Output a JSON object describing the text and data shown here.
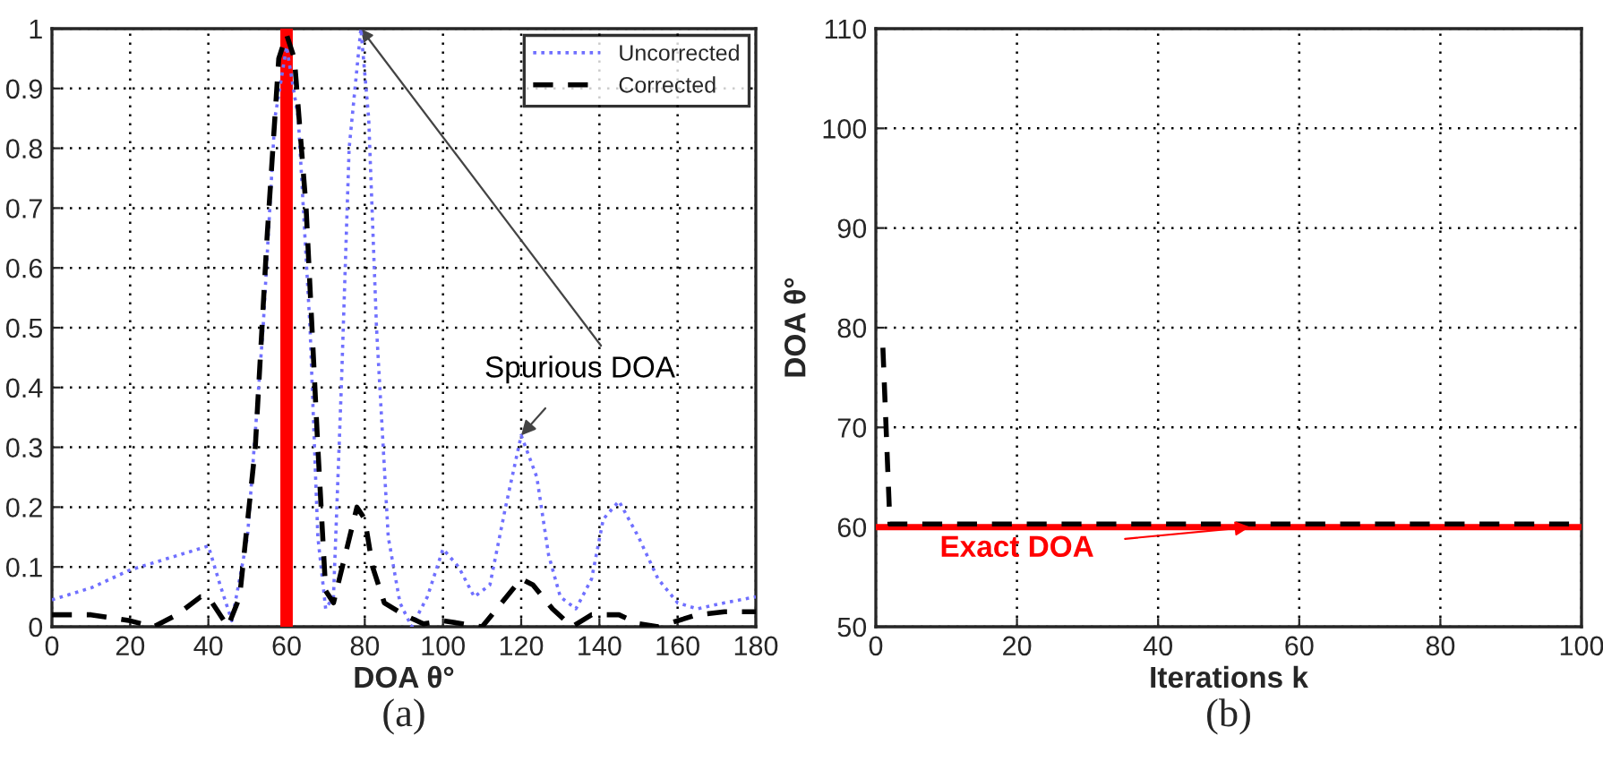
{
  "chart_data": [
    {
      "type": "line",
      "xlabel": "DOA θ°",
      "xlim": [
        0,
        180
      ],
      "xticks": [
        0,
        20,
        40,
        60,
        80,
        100,
        120,
        140,
        160,
        180
      ],
      "ylim": [
        0,
        1
      ],
      "yticks": [
        0,
        0.1,
        0.2,
        0.3,
        0.4,
        0.5,
        0.6,
        0.7,
        0.8,
        0.9,
        1
      ],
      "grid": true,
      "legend": "top right",
      "series": [
        {
          "name": "Uncorrected",
          "color": "#7070ff",
          "line_style": "dotted",
          "x": [
            0,
            10,
            20,
            30,
            40,
            43,
            46,
            50,
            54,
            57,
            60,
            63,
            66,
            68,
            70,
            72,
            74,
            76,
            79,
            81,
            83,
            86,
            89,
            92,
            96,
            100,
            104,
            108,
            112,
            116,
            120,
            124,
            127,
            130,
            134,
            138,
            141,
            145,
            150,
            155,
            160,
            165,
            172,
            180
          ],
          "values": [
            0.045,
            0.065,
            0.095,
            0.115,
            0.135,
            0.07,
            0.01,
            0.15,
            0.5,
            0.85,
            0.97,
            0.85,
            0.5,
            0.15,
            0.03,
            0.05,
            0.4,
            0.8,
            1.0,
            0.85,
            0.5,
            0.15,
            0.04,
            0.0,
            0.05,
            0.13,
            0.1,
            0.05,
            0.07,
            0.2,
            0.32,
            0.25,
            0.12,
            0.05,
            0.03,
            0.08,
            0.18,
            0.21,
            0.15,
            0.08,
            0.04,
            0.03,
            0.04,
            0.05
          ]
        },
        {
          "name": "Corrected",
          "color": "#000000",
          "line_style": "dashed",
          "x": [
            0,
            10,
            20,
            26,
            32,
            38,
            40,
            42,
            45,
            48,
            52,
            55,
            58,
            60,
            62,
            65,
            68,
            70,
            72,
            75,
            78,
            80,
            82,
            85,
            90,
            95,
            100,
            105,
            110,
            115,
            120,
            123,
            128,
            133,
            138,
            145,
            150,
            155,
            160,
            165,
            172,
            180
          ],
          "values": [
            0.02,
            0.02,
            0.01,
            0.0,
            0.02,
            0.05,
            0.05,
            0.03,
            0.0,
            0.05,
            0.3,
            0.65,
            0.95,
            0.99,
            0.95,
            0.7,
            0.3,
            0.06,
            0.04,
            0.12,
            0.2,
            0.18,
            0.1,
            0.04,
            0.02,
            0.005,
            0.01,
            0.005,
            0.0,
            0.04,
            0.08,
            0.07,
            0.03,
            0.0,
            0.02,
            0.02,
            0.005,
            0.0,
            0.01,
            0.02,
            0.025,
            0.025
          ]
        }
      ],
      "ref_lines": [
        {
          "axis": "x",
          "value": 60,
          "color": "#ff0000"
        }
      ],
      "annotations": [
        {
          "text": "Spurious DOA",
          "x": 120,
          "y": 0.32
        },
        "(a)"
      ]
    },
    {
      "type": "line",
      "xlabel": "Iterations k",
      "ylabel": "DOA θ°",
      "xlim": [
        0,
        100
      ],
      "xticks": [
        0,
        20,
        40,
        60,
        80,
        100
      ],
      "ylim": [
        50,
        110
      ],
      "yticks": [
        50,
        60,
        70,
        80,
        90,
        100,
        110
      ],
      "grid": true,
      "series": [
        {
          "color": "#000000",
          "line_style": "dashed",
          "x": [
            1,
            2,
            100
          ],
          "values": [
            78,
            60.3,
            60.3
          ]
        }
      ],
      "ref_lines": [
        {
          "axis": "y",
          "value": 60,
          "color": "#ff0000"
        }
      ],
      "annotations": [
        {
          "text": "Exact DOA",
          "x": 53,
          "y": 60
        },
        "(b)"
      ]
    }
  ]
}
